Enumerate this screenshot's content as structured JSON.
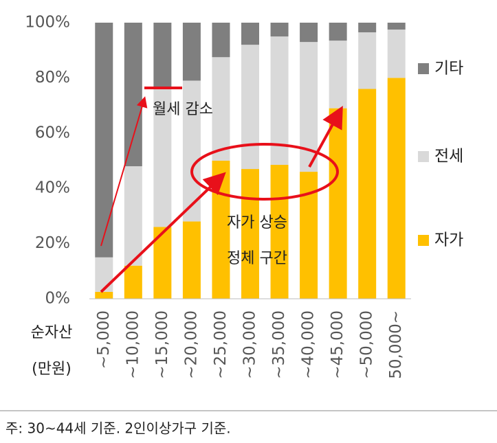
{
  "chart_data": {
    "type": "stacked_bar",
    "categories": [
      "~5,000",
      "~10,000",
      "~15,000",
      "~20,000",
      "~25,000",
      "~30,000",
      "~35,000",
      "~40,000",
      "~45,000",
      "~50,000",
      "50,000~"
    ],
    "series": [
      {
        "name": "자가",
        "color": "#ffc000",
        "values": [
          2.5,
          12,
          26,
          28,
          50,
          47,
          48.5,
          46,
          69,
          76,
          80
        ]
      },
      {
        "name": "전세",
        "color": "#d9d9d9",
        "values": [
          12.5,
          36,
          50,
          51,
          37.5,
          45,
          46.5,
          47,
          24.5,
          20.5,
          17.5
        ]
      },
      {
        "name": "기타",
        "color": "#7f7f7f",
        "values": [
          85,
          52,
          24,
          21,
          12.5,
          8,
          5,
          7,
          6.5,
          3.5,
          2.5
        ]
      }
    ],
    "ylim": [
      0,
      100
    ],
    "yticks": [
      {
        "value": 0,
        "label": "0%"
      },
      {
        "value": 20,
        "label": "20%"
      },
      {
        "value": 40,
        "label": "40%"
      },
      {
        "value": 60,
        "label": "60%"
      },
      {
        "value": 80,
        "label": "80%"
      },
      {
        "value": 100,
        "label": "100%"
      }
    ],
    "xlabel": [
      "순자산",
      "(만원)"
    ],
    "annotations": [
      "월세 감소",
      "자가 상승",
      "정체 구간"
    ],
    "note": "주: 30~44세 기준. 2인이상가구 기준."
  }
}
